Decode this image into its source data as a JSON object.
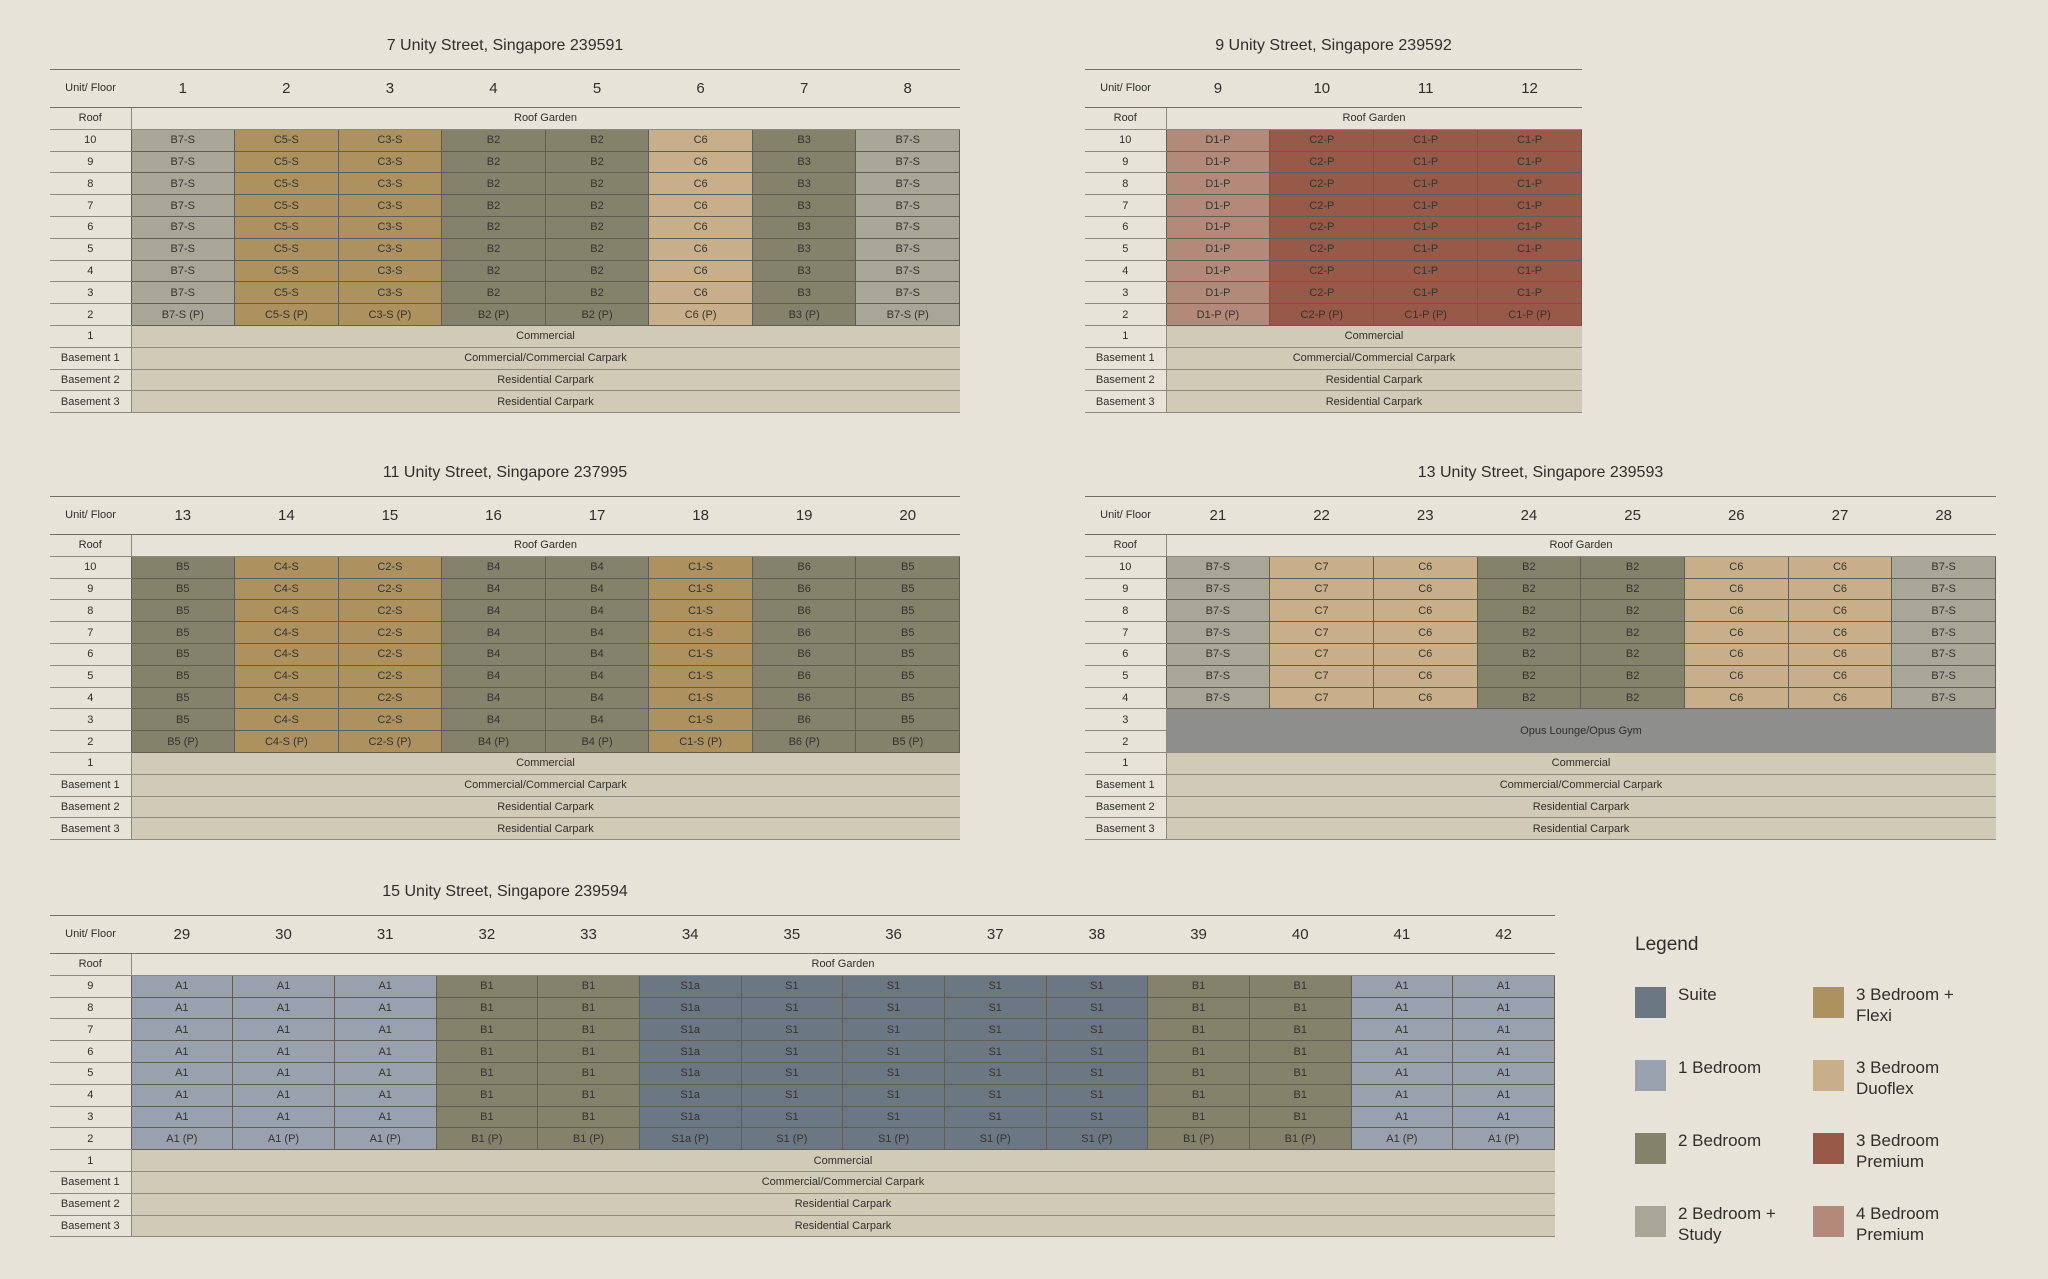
{
  "buildings": [
    {
      "title": "7 Unity Street, Singapore 239591",
      "unit_header": "Unit/ Floor",
      "units": [
        "1",
        "2",
        "3",
        "4",
        "5",
        "6",
        "7",
        "8"
      ],
      "rows": [
        {
          "floor": "Roof",
          "span": "Roof Garden"
        },
        {
          "floor": "10",
          "cells": [
            "B7-S",
            "C5-S",
            "C3-S",
            "B2",
            "B2",
            "C6",
            "B3",
            "B7-S"
          ]
        },
        {
          "floor": "9",
          "cells": [
            "B7-S",
            "C5-S",
            "C3-S",
            "B2",
            "B2",
            "C6",
            "B3",
            "B7-S"
          ]
        },
        {
          "floor": "8",
          "cells": [
            "B7-S",
            "C5-S",
            "C3-S",
            "B2",
            "B2",
            "C6",
            "B3",
            "B7-S"
          ]
        },
        {
          "floor": "7",
          "cells": [
            "B7-S",
            "C5-S",
            "C3-S",
            "B2",
            "B2",
            "C6",
            "B3",
            "B7-S"
          ]
        },
        {
          "floor": "6",
          "cells": [
            "B7-S",
            "C5-S",
            "C3-S",
            "B2",
            "B2",
            "C6",
            "B3",
            "B7-S"
          ]
        },
        {
          "floor": "5",
          "cells": [
            "B7-S",
            "C5-S",
            "C3-S",
            "B2",
            "B2",
            "C6",
            "B3",
            "B7-S"
          ]
        },
        {
          "floor": "4",
          "cells": [
            "B7-S",
            "C5-S",
            "C3-S",
            "B2",
            "B2",
            "C6",
            "B3",
            "B7-S"
          ]
        },
        {
          "floor": "3",
          "cells": [
            "B7-S",
            "C5-S",
            "C3-S",
            "B2",
            "B2",
            "C6",
            "B3",
            "B7-S"
          ]
        },
        {
          "floor": "2",
          "cells": [
            "B7-S (P)",
            "C5-S (P)",
            "C3-S (P)",
            "B2 (P)",
            "B2 (P)",
            "C6 (P)",
            "B3 (P)",
            "B7-S (P)"
          ]
        },
        {
          "floor": "1",
          "span": "Commercial"
        },
        {
          "floor": "Basement 1",
          "span": "Commercial/Commercial Carpark"
        },
        {
          "floor": "Basement 2",
          "span": "Residential Carpark"
        },
        {
          "floor": "Basement 3",
          "span": "Residential Carpark"
        }
      ]
    },
    {
      "title": "9 Unity Street, Singapore 239592",
      "unit_header": "Unit/ Floor",
      "units": [
        "9",
        "10",
        "11",
        "12"
      ],
      "rows": [
        {
          "floor": "Roof",
          "span": "Roof Garden"
        },
        {
          "floor": "10",
          "cells": [
            "D1-P",
            "C2-P",
            "C1-P",
            "C1-P"
          ]
        },
        {
          "floor": "9",
          "cells": [
            "D1-P",
            "C2-P",
            "C1-P",
            "C1-P"
          ]
        },
        {
          "floor": "8",
          "cells": [
            "D1-P",
            "C2-P",
            "C1-P",
            "C1-P"
          ]
        },
        {
          "floor": "7",
          "cells": [
            "D1-P",
            "C2-P",
            "C1-P",
            "C1-P"
          ]
        },
        {
          "floor": "6",
          "cells": [
            "D1-P",
            "C2-P",
            "C1-P",
            "C1-P"
          ]
        },
        {
          "floor": "5",
          "cells": [
            "D1-P",
            "C2-P",
            "C1-P",
            "C1-P"
          ]
        },
        {
          "floor": "4",
          "cells": [
            "D1-P",
            "C2-P",
            "C1-P",
            "C1-P"
          ]
        },
        {
          "floor": "3",
          "cells": [
            "D1-P",
            "C2-P",
            "C1-P",
            "C1-P"
          ]
        },
        {
          "floor": "2",
          "cells": [
            "D1-P (P)",
            "C2-P (P)",
            "C1-P (P)",
            "C1-P (P)"
          ]
        },
        {
          "floor": "1",
          "span": "Commercial"
        },
        {
          "floor": "Basement 1",
          "span": "Commercial/Commercial Carpark"
        },
        {
          "floor": "Basement 2",
          "span": "Residential Carpark"
        },
        {
          "floor": "Basement 3",
          "span": "Residential Carpark"
        }
      ]
    },
    {
      "title": "11 Unity Street, Singapore 237995",
      "unit_header": "Unit/ Floor",
      "units": [
        "13",
        "14",
        "15",
        "16",
        "17",
        "18",
        "19",
        "20"
      ],
      "rows": [
        {
          "floor": "Roof",
          "span": "Roof Garden"
        },
        {
          "floor": "10",
          "cells": [
            "B5",
            "C4-S",
            "C2-S",
            "B4",
            "B4",
            "C1-S",
            "B6",
            "B5"
          ]
        },
        {
          "floor": "9",
          "cells": [
            "B5",
            "C4-S",
            "C2-S",
            "B4",
            "B4",
            "C1-S",
            "B6",
            "B5"
          ]
        },
        {
          "floor": "8",
          "cells": [
            "B5",
            "C4-S",
            "C2-S",
            "B4",
            "B4",
            "C1-S",
            "B6",
            "B5"
          ]
        },
        {
          "floor": "7",
          "cells": [
            "B5",
            "C4-S",
            "C2-S",
            "B4",
            "B4",
            "C1-S",
            "B6",
            "B5"
          ]
        },
        {
          "floor": "6",
          "cells": [
            "B5",
            "C4-S",
            "C2-S",
            "B4",
            "B4",
            "C1-S",
            "B6",
            "B5"
          ]
        },
        {
          "floor": "5",
          "cells": [
            "B5",
            "C4-S",
            "C2-S",
            "B4",
            "B4",
            "C1-S",
            "B6",
            "B5"
          ]
        },
        {
          "floor": "4",
          "cells": [
            "B5",
            "C4-S",
            "C2-S",
            "B4",
            "B4",
            "C1-S",
            "B6",
            "B5"
          ]
        },
        {
          "floor": "3",
          "cells": [
            "B5",
            "C4-S",
            "C2-S",
            "B4",
            "B4",
            "C1-S",
            "B6",
            "B5"
          ]
        },
        {
          "floor": "2",
          "cells": [
            "B5 (P)",
            "C4-S (P)",
            "C2-S (P)",
            "B4 (P)",
            "B4 (P)",
            "C1-S (P)",
            "B6 (P)",
            "B5 (P)"
          ]
        },
        {
          "floor": "1",
          "span": "Commercial"
        },
        {
          "floor": "Basement 1",
          "span": "Commercial/Commercial Carpark"
        },
        {
          "floor": "Basement 2",
          "span": "Residential Carpark"
        },
        {
          "floor": "Basement 3",
          "span": "Residential Carpark"
        }
      ]
    },
    {
      "title": "13 Unity Street, Singapore 239593",
      "unit_header": "Unit/ Floor",
      "units": [
        "21",
        "22",
        "23",
        "24",
        "25",
        "26",
        "27",
        "28"
      ],
      "rows": [
        {
          "floor": "Roof",
          "span": "Roof Garden"
        },
        {
          "floor": "10",
          "cells": [
            "B7-S",
            "C7",
            "C6",
            "B2",
            "B2",
            "C6",
            "C6",
            "B7-S"
          ]
        },
        {
          "floor": "9",
          "cells": [
            "B7-S",
            "C7",
            "C6",
            "B2",
            "B2",
            "C6",
            "C6",
            "B7-S"
          ]
        },
        {
          "floor": "8",
          "cells": [
            "B7-S",
            "C7",
            "C6",
            "B2",
            "B2",
            "C6",
            "C6",
            "B7-S"
          ]
        },
        {
          "floor": "7",
          "cells": [
            "B7-S",
            "C7",
            "C6",
            "B2",
            "B2",
            "C6",
            "C6",
            "B7-S"
          ]
        },
        {
          "floor": "6",
          "cells": [
            "B7-S",
            "C7",
            "C6",
            "B2",
            "B2",
            "C6",
            "C6",
            "B7-S"
          ]
        },
        {
          "floor": "5",
          "cells": [
            "B7-S",
            "C7",
            "C6",
            "B2",
            "B2",
            "C6",
            "C6",
            "B7-S"
          ]
        },
        {
          "floor": "4",
          "cells": [
            "B7-S",
            "C7",
            "C6",
            "B2",
            "B2",
            "C6",
            "C6",
            "B7-S"
          ]
        },
        {
          "floors": [
            "3",
            "2"
          ],
          "span": "Opus Lounge/Opus Gym"
        },
        {
          "floor": "1",
          "span": "Commercial"
        },
        {
          "floor": "Basement 1",
          "span": "Commercial/Commercial Carpark"
        },
        {
          "floor": "Basement 2",
          "span": "Residential Carpark"
        },
        {
          "floor": "Basement 3",
          "span": "Residential Carpark"
        }
      ]
    },
    {
      "title": "15 Unity Street, Singapore 239594",
      "unit_header": "Unit/ Floor",
      "units": [
        "29",
        "30",
        "31",
        "32",
        "33",
        "34",
        "35",
        "36",
        "37",
        "38",
        "39",
        "40",
        "41",
        "42"
      ],
      "rows": [
        {
          "floor": "Roof",
          "span": "Roof Garden"
        },
        {
          "floor": "9",
          "cells": [
            "A1",
            "A1",
            "A1",
            "B1",
            "B1",
            "S1a",
            "S1",
            "S1",
            "S1",
            "S1",
            "B1",
            "B1",
            "A1",
            "A1"
          ]
        },
        {
          "floor": "8",
          "cells": [
            "A1",
            "A1",
            "A1",
            "B1",
            "B1",
            "S1a",
            "S1",
            "S1",
            "S1",
            "S1",
            "B1",
            "B1",
            "A1",
            "A1"
          ]
        },
        {
          "floor": "7",
          "cells": [
            "A1",
            "A1",
            "A1",
            "B1",
            "B1",
            "S1a",
            "S1",
            "S1",
            "S1",
            "S1",
            "B1",
            "B1",
            "A1",
            "A1"
          ]
        },
        {
          "floor": "6",
          "cells": [
            "A1",
            "A1",
            "A1",
            "B1",
            "B1",
            "S1a",
            "S1",
            "S1",
            "S1",
            "S1",
            "B1",
            "B1",
            "A1",
            "A1"
          ]
        },
        {
          "floor": "5",
          "cells": [
            "A1",
            "A1",
            "A1",
            "B1",
            "B1",
            "S1a",
            "S1",
            "S1",
            "S1",
            "S1",
            "B1",
            "B1",
            "A1",
            "A1"
          ]
        },
        {
          "floor": "4",
          "cells": [
            "A1",
            "A1",
            "A1",
            "B1",
            "B1",
            "S1a",
            "S1",
            "S1",
            "S1",
            "S1",
            "B1",
            "B1",
            "A1",
            "A1"
          ]
        },
        {
          "floor": "3",
          "cells": [
            "A1",
            "A1",
            "A1",
            "B1",
            "B1",
            "S1a",
            "S1",
            "S1",
            "S1",
            "S1",
            "B1",
            "B1",
            "A1",
            "A1"
          ]
        },
        {
          "floor": "2",
          "cells": [
            "A1 (P)",
            "A1 (P)",
            "A1 (P)",
            "B1 (P)",
            "B1 (P)",
            "S1a (P)",
            "S1 (P)",
            "S1 (P)",
            "S1 (P)",
            "S1 (P)",
            "B1 (P)",
            "B1 (P)",
            "A1 (P)",
            "A1 (P)"
          ]
        },
        {
          "floor": "1",
          "span": "Commercial"
        },
        {
          "floor": "Basement 1",
          "span": "Commercial/Commercial Carpark"
        },
        {
          "floor": "Basement 2",
          "span": "Residential Carpark"
        },
        {
          "floor": "Basement 3",
          "span": "Residential Carpark"
        }
      ]
    }
  ],
  "legend": {
    "title": "Legend",
    "items": [
      {
        "label": "Suite",
        "color": "#6c7784"
      },
      {
        "label": "1 Bedroom",
        "color": "#98a1ad"
      },
      {
        "label": "2 Bedroom",
        "color": "#84826b"
      },
      {
        "label": "2 Bedroom + Study",
        "color": "#a8a696"
      },
      {
        "label": "3 Bedroom + Flexi",
        "color": "#ad915f"
      },
      {
        "label": "3 Bedroom Duoflex",
        "color": "#c8af89"
      },
      {
        "label": "3 Bedroom Premium",
        "color": "#975a48"
      },
      {
        "label": "4 Bedroom Premium",
        "color": "#b38a79"
      }
    ]
  }
}
